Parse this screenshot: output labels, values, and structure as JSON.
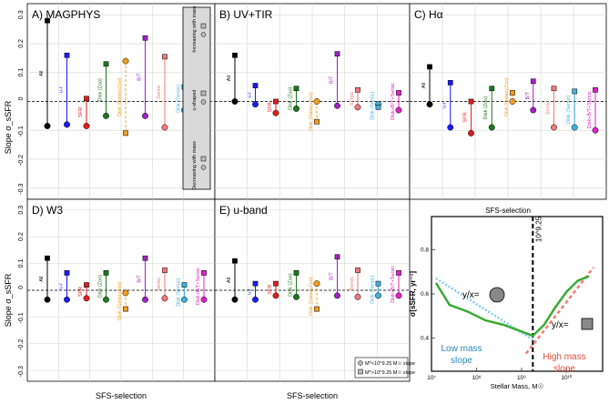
{
  "figure": {
    "ylabel": "Slope σ_sSFR",
    "xlabel_bottom": "SFS-selection",
    "x_labels": [
      "SFS-selection",
      "SFS-selection"
    ],
    "legend": {
      "increasing": "Increasing with mass",
      "u_shaped": "u-shaped",
      "decreasing": "Decreasing with mass",
      "low_slope": "M*<10^9.25 M☉ slope",
      "high_slope": "M*>10^9.25 M☉ slope"
    },
    "y_ticks": [
      "0.3",
      "0.2",
      "0.1",
      "0",
      "-0.1",
      "-0.2",
      "-0.3"
    ]
  },
  "chart_data": [
    {
      "type": "scatter",
      "title": "A) MAGPHYS",
      "ylabel": "Slope σ_sSFR",
      "ylim": [
        -0.32,
        0.32
      ],
      "categories": [
        "All",
        "u-r",
        "SFR",
        "Disk (Zoo)",
        "Disk (GalaxyZoo)",
        "B/T",
        "Sersic",
        "Disk (Sersic)",
        "Disk+B/T+Sersic"
      ],
      "cat_colors": [
        "#000000",
        "#1a1aff",
        "#e01e1e",
        "#1b7a1b",
        "#f0a020",
        "#a020c8",
        "#f07a7a",
        "#40b0e0",
        "#e020c8"
      ],
      "series": [
        {
          "name": "M*<10^9.25 M☉ slope",
          "values": [
            -0.085,
            -0.08,
            -0.085,
            -0.05,
            0.14,
            -0.05,
            -0.09,
            -0.03,
            -0.04
          ]
        },
        {
          "name": "M*>10^9.25 M☉ slope",
          "values": [
            0.28,
            0.16,
            0.01,
            0.13,
            -0.11,
            0.22,
            0.155,
            0.05,
            0.1
          ]
        }
      ]
    },
    {
      "type": "scatter",
      "title": "B) UV+TIR",
      "ylim": [
        -0.32,
        0.32
      ],
      "categories": [
        "All",
        "u-r",
        "SFR",
        "Disk (Zoo)",
        "Disk (GalaxyZoo)",
        "B/T",
        "Sersic",
        "Disk (Sersic)",
        "Disk+B/T+Sersic"
      ],
      "series": [
        {
          "name": "M*<10^9.25 M☉ slope",
          "values": [
            0.0,
            -0.01,
            -0.04,
            -0.025,
            0.0,
            -0.015,
            -0.02,
            -0.01,
            -0.03
          ]
        },
        {
          "name": "M*>10^9.25 M☉ slope",
          "values": [
            0.16,
            0.055,
            0.0,
            0.045,
            -0.07,
            0.165,
            0.04,
            -0.02,
            0.03
          ]
        }
      ]
    },
    {
      "type": "scatter",
      "title": "C) Hα",
      "ylim": [
        -0.32,
        0.32
      ],
      "categories": [
        "All",
        "u-r",
        "SFR",
        "Disk (Zoo)",
        "Disk (GalaxyZoo)",
        "B/T",
        "Sersic",
        "Disk (Sersic)",
        "Disk+B/T+Sersic"
      ],
      "series": [
        {
          "name": "M*<10^9.25 M☉ slope",
          "values": [
            -0.01,
            -0.09,
            -0.11,
            -0.09,
            0.0,
            -0.03,
            -0.09,
            -0.09,
            -0.1
          ]
        },
        {
          "name": "M*>10^9.25 M☉ slope",
          "values": [
            0.12,
            0.065,
            0.0,
            0.045,
            0.03,
            0.07,
            0.045,
            0.035,
            0.04
          ]
        }
      ]
    },
    {
      "type": "scatter",
      "title": "D) W3",
      "ylabel": "Slope σ_sSFR",
      "ylim": [
        -0.32,
        0.32
      ],
      "categories": [
        "All",
        "u-r",
        "SFR",
        "Disk (Zoo)",
        "Disk (GalaxyZoo)",
        "B/T",
        "Sersic",
        "Disk (Sersic)",
        "Disk+B/T+Sersic"
      ],
      "series": [
        {
          "name": "M*<10^9.25 M☉ slope",
          "values": [
            -0.035,
            -0.035,
            -0.03,
            -0.035,
            -0.01,
            -0.035,
            -0.03,
            -0.035,
            -0.035
          ]
        },
        {
          "name": "M*>10^9.25 M☉ slope",
          "values": [
            0.12,
            0.065,
            0.02,
            0.065,
            -0.07,
            0.12,
            0.075,
            0.02,
            0.065
          ]
        }
      ]
    },
    {
      "type": "scatter",
      "title": "E) u-band",
      "ylim": [
        -0.32,
        0.32
      ],
      "categories": [
        "All",
        "u-r",
        "SFR",
        "Disk (Zoo)",
        "Disk (GalaxyZoo)",
        "B/T",
        "Sersic",
        "Disk (Sersic)",
        "Disk+B/T+Sersic"
      ],
      "series": [
        {
          "name": "M*<10^9.25 M☉ slope",
          "values": [
            -0.035,
            -0.035,
            -0.02,
            -0.025,
            0.025,
            -0.02,
            -0.025,
            -0.02,
            -0.02
          ]
        },
        {
          "name": "M*>10^9.25 M☉ slope",
          "values": [
            0.11,
            0.025,
            0.025,
            0.065,
            -0.07,
            0.125,
            0.075,
            0.025,
            0.065
          ]
        }
      ]
    },
    {
      "type": "line",
      "title": "SFS-selection",
      "xlabel": "Stellar Mass, M☉",
      "ylabel": "σ[sSFR, yr⁻¹]",
      "xscale": "log",
      "xlim": [
        7,
        10.8
      ],
      "ylim": [
        0.25,
        0.95
      ],
      "x_ticks": [
        "10⁷",
        "10⁸",
        "10⁹",
        "10¹⁰"
      ],
      "y_ticks": [
        "0.4",
        "0.6",
        "0.8"
      ],
      "divider_label": "10^9.25",
      "divider_x": 9.25,
      "series": [
        {
          "values_x": [
            7.1,
            7.4,
            7.8,
            8.2,
            8.6,
            9.0,
            9.25,
            9.5,
            9.75,
            10.0,
            10.25,
            10.5
          ],
          "values_y": [
            0.65,
            0.55,
            0.52,
            0.48,
            0.46,
            0.43,
            0.41,
            0.46,
            0.54,
            0.61,
            0.66,
            0.68
          ]
        }
      ],
      "fits": [
        {
          "x": [
            7.1,
            9.35
          ],
          "y": [
            0.67,
            0.38
          ]
        },
        {
          "x": [
            9.1,
            10.6
          ],
          "y": [
            0.33,
            0.72
          ]
        }
      ],
      "annotations": {
        "low_marker": "y/x=",
        "high_marker": "y/x=",
        "low_text": "Low mass slope",
        "high_text": "High mass slope"
      }
    }
  ]
}
